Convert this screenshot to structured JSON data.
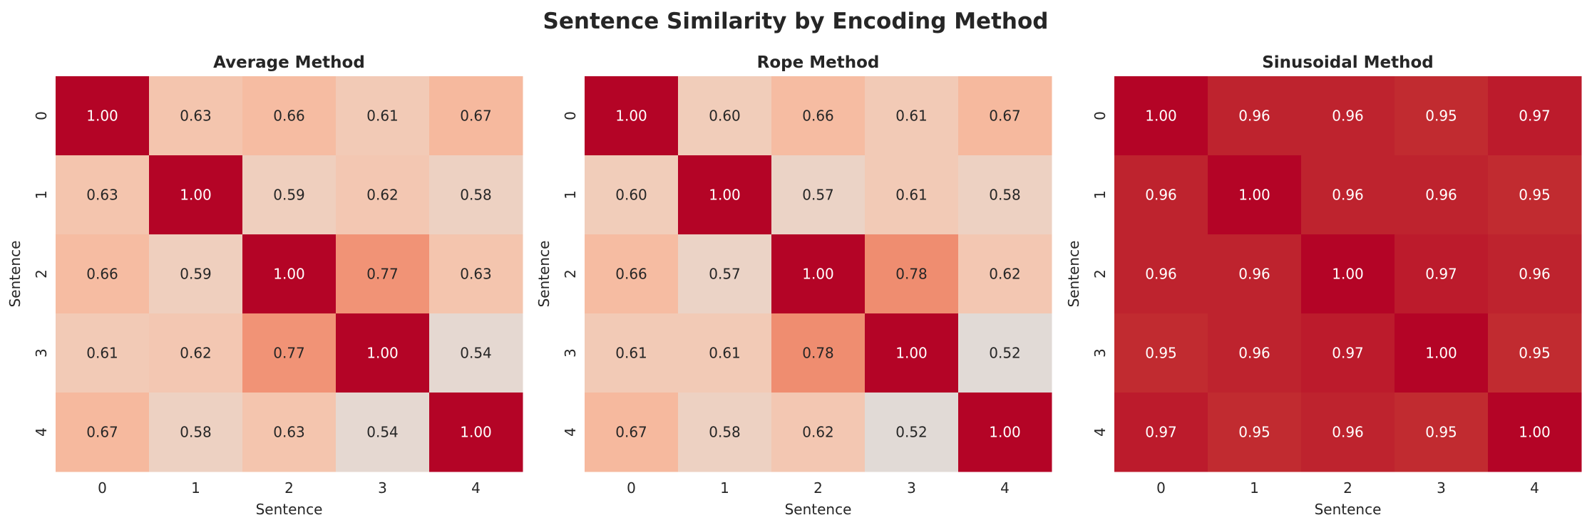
{
  "chart_data": {
    "type": "heatmap",
    "title": "Sentence Similarity by Encoding Method",
    "vlim": [
      0,
      1
    ],
    "colormap": "coolwarm",
    "panels": [
      {
        "title": "Average Method",
        "xlabel": "Sentence",
        "ylabel": "Sentence",
        "xticks": [
          "0",
          "1",
          "2",
          "3",
          "4"
        ],
        "yticks": [
          "0",
          "1",
          "2",
          "3",
          "4"
        ],
        "values": [
          [
            1.0,
            0.63,
            0.66,
            0.61,
            0.67
          ],
          [
            0.63,
            1.0,
            0.59,
            0.62,
            0.58
          ],
          [
            0.66,
            0.59,
            1.0,
            0.77,
            0.63
          ],
          [
            0.61,
            0.62,
            0.77,
            1.0,
            0.54
          ],
          [
            0.67,
            0.58,
            0.63,
            0.54,
            1.0
          ]
        ]
      },
      {
        "title": "Rope Method",
        "xlabel": "Sentence",
        "ylabel": "Sentence",
        "xticks": [
          "0",
          "1",
          "2",
          "3",
          "4"
        ],
        "yticks": [
          "0",
          "1",
          "2",
          "3",
          "4"
        ],
        "values": [
          [
            1.0,
            0.6,
            0.66,
            0.61,
            0.67
          ],
          [
            0.6,
            1.0,
            0.57,
            0.61,
            0.58
          ],
          [
            0.66,
            0.57,
            1.0,
            0.78,
            0.62
          ],
          [
            0.61,
            0.61,
            0.78,
            1.0,
            0.52
          ],
          [
            0.67,
            0.58,
            0.62,
            0.52,
            1.0
          ]
        ]
      },
      {
        "title": "Sinusoidal Method",
        "xlabel": "Sentence",
        "ylabel": "Sentence",
        "xticks": [
          "0",
          "1",
          "2",
          "3",
          "4"
        ],
        "yticks": [
          "0",
          "1",
          "2",
          "3",
          "4"
        ],
        "values": [
          [
            1.0,
            0.96,
            0.96,
            0.95,
            0.97
          ],
          [
            0.96,
            1.0,
            0.96,
            0.96,
            0.95
          ],
          [
            0.96,
            0.96,
            1.0,
            0.97,
            0.96
          ],
          [
            0.95,
            0.96,
            0.97,
            1.0,
            0.95
          ],
          [
            0.97,
            0.95,
            0.96,
            0.95,
            1.0
          ]
        ]
      }
    ]
  }
}
